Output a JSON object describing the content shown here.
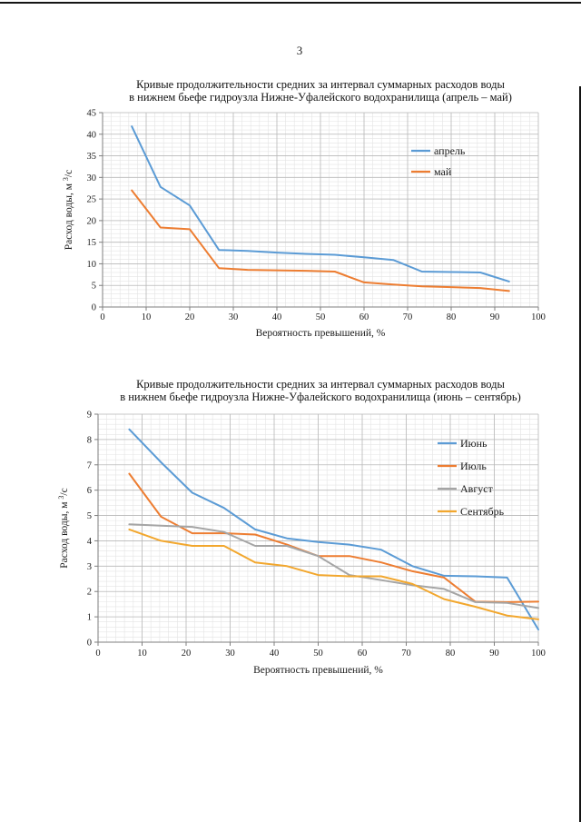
{
  "page": {
    "number": "3"
  },
  "chart_data": [
    {
      "type": "line",
      "title_lines": [
        "Кривые продолжительности средних за интервал суммарных расходов воды",
        "в нижнем бьефе гидроузла Нижне-Уфалейского водохранилища (апрель – май)"
      ],
      "xlabel": "Вероятность превышений, %",
      "ylabel": {
        "prefix": "Расход воды, м ",
        "sup": "3",
        "suffix": "/с"
      },
      "xlim": [
        0,
        100
      ],
      "ylim": [
        0,
        45
      ],
      "x_ticks": [
        0,
        10,
        20,
        30,
        40,
        50,
        60,
        70,
        80,
        90,
        100
      ],
      "y_ticks": [
        0,
        5,
        10,
        15,
        20,
        25,
        30,
        35,
        40,
        45
      ],
      "x_minor_step": 2,
      "y_minor_step": 1,
      "grid": true,
      "legend_position": "inside-upper-right",
      "x": [
        6.7,
        13.3,
        20,
        26.7,
        33.3,
        40,
        46.7,
        53.3,
        60,
        66.7,
        73.3,
        80,
        86.7,
        93.3
      ],
      "series": [
        {
          "name": "апрель",
          "color": "#5B9BD5",
          "values": [
            41.8,
            27.8,
            23.5,
            13.2,
            13.0,
            12.6,
            12.3,
            12.1,
            11.5,
            10.9,
            8.2,
            8.1,
            8.0,
            5.9
          ]
        },
        {
          "name": "май",
          "color": "#ED7D31",
          "values": [
            27.0,
            18.4,
            18.0,
            9.0,
            8.6,
            8.5,
            8.4,
            8.2,
            5.7,
            5.2,
            4.8,
            4.6,
            4.4,
            3.7
          ]
        }
      ]
    },
    {
      "type": "line",
      "title_lines": [
        "Кривые продолжительности средних за интервал суммарных расходов воды",
        "в нижнем бьефе гидроузла Нижне-Уфалейского водохранилища (июнь – сентябрь)"
      ],
      "xlabel": "Вероятность превышений, %",
      "ylabel": {
        "prefix": "Расход воды, м ",
        "sup": "3",
        "suffix": "/с"
      },
      "xlim": [
        0,
        100
      ],
      "ylim": [
        0,
        9
      ],
      "x_ticks": [
        0,
        10,
        20,
        30,
        40,
        50,
        60,
        70,
        80,
        90,
        100
      ],
      "y_ticks": [
        0,
        1,
        2,
        3,
        4,
        5,
        6,
        7,
        8,
        9
      ],
      "x_minor_step": 2,
      "y_minor_step": 0.2,
      "grid": true,
      "legend_position": "inside-upper-right",
      "x": [
        7.1,
        14.3,
        21.4,
        28.6,
        35.7,
        42.9,
        50,
        57.1,
        64.3,
        71.4,
        78.6,
        85.7,
        92.9,
        100
      ],
      "series": [
        {
          "name": "Июнь",
          "color": "#5B9BD5",
          "values": [
            8.4,
            7.1,
            5.9,
            5.3,
            4.45,
            4.1,
            3.95,
            3.85,
            3.65,
            3.0,
            2.62,
            2.6,
            2.55,
            0.5
          ]
        },
        {
          "name": "Июль",
          "color": "#ED7D31",
          "values": [
            6.65,
            4.95,
            4.3,
            4.3,
            4.25,
            3.85,
            3.4,
            3.4,
            3.15,
            2.8,
            2.55,
            1.6,
            1.58,
            1.6
          ]
        },
        {
          "name": "Август",
          "color": "#A5A5A5",
          "values": [
            4.65,
            4.6,
            4.55,
            4.35,
            3.8,
            3.8,
            3.4,
            2.65,
            2.45,
            2.25,
            2.1,
            1.58,
            1.55,
            1.35
          ]
        },
        {
          "name": "Сентябрь",
          "color": "#F2A72E",
          "values": [
            4.45,
            4.0,
            3.8,
            3.8,
            3.15,
            3.0,
            2.65,
            2.6,
            2.6,
            2.3,
            1.7,
            1.4,
            1.05,
            0.9
          ]
        }
      ]
    }
  ]
}
